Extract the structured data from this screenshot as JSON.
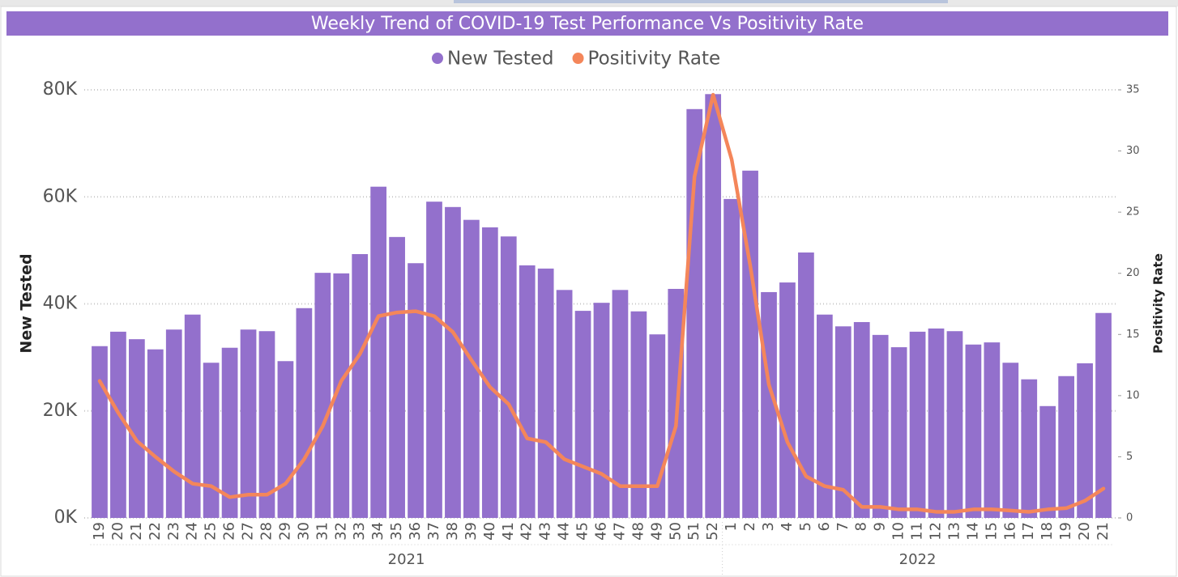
{
  "chart_data": {
    "type": "bar-line",
    "title": "Weekly Trend of COVID-19 Test Performance Vs Positivity Rate",
    "categories": [
      "19",
      "20",
      "21",
      "22",
      "23",
      "24",
      "25",
      "26",
      "27",
      "28",
      "29",
      "30",
      "31",
      "32",
      "33",
      "34",
      "35",
      "36",
      "37",
      "38",
      "39",
      "40",
      "41",
      "42",
      "43",
      "44",
      "45",
      "46",
      "47",
      "48",
      "49",
      "50",
      "51",
      "52",
      "1",
      "2",
      "3",
      "4",
      "5",
      "6",
      "7",
      "8",
      "9",
      "10",
      "11",
      "12",
      "13",
      "14",
      "15",
      "16",
      "17",
      "18",
      "19",
      "20",
      "21"
    ],
    "group_labels": [
      "2021",
      "2022"
    ],
    "series": [
      {
        "name": "New Tested",
        "color": "#9370cc",
        "kind": "bar",
        "axis": "y",
        "values": [
          32100,
          34800,
          33400,
          31500,
          35200,
          38000,
          29000,
          31800,
          35200,
          34900,
          29300,
          39200,
          45800,
          45700,
          49300,
          61900,
          52500,
          47600,
          59100,
          58100,
          55700,
          54300,
          52600,
          47200,
          46600,
          42600,
          38700,
          40200,
          42600,
          38600,
          34300,
          42800,
          76400,
          79200,
          59600,
          64900,
          42200,
          44000,
          49600,
          38000,
          35800,
          36600,
          34200,
          31900,
          34800,
          35400,
          34900,
          32400,
          32800,
          29000,
          25900,
          20900,
          26500,
          28900,
          38300
        ]
      },
      {
        "name": "Positivity Rate",
        "color": "#f4865a",
        "kind": "line",
        "axis": "y2",
        "values": [
          11.2,
          8.6,
          6.3,
          5,
          3.8,
          2.8,
          2.6,
          1.7,
          1.9,
          1.9,
          2.8,
          4.8,
          7.5,
          11.2,
          13.4,
          16.5,
          16.8,
          16.9,
          16.5,
          15.2,
          12.9,
          10.7,
          9.3,
          6.5,
          6.2,
          4.8,
          4.2,
          3.6,
          2.6,
          2.6,
          2.6,
          7.5,
          27.9,
          34.6,
          29.3,
          20.6,
          10.9,
          6.2,
          3.4,
          2.6,
          2.3,
          0.9,
          0.9,
          0.7,
          0.7,
          0.5,
          0.5,
          0.7,
          0.7,
          0.6,
          0.5,
          0.7,
          0.8,
          1.4,
          2.4
        ]
      }
    ],
    "ylabel": "New Tested",
    "y2label": "Positivity Rate",
    "ylim": [
      0,
      80000
    ],
    "yticks": [
      {
        "value": 0,
        "label": "0K"
      },
      {
        "value": 20000,
        "label": "20K"
      },
      {
        "value": 40000,
        "label": "40K"
      },
      {
        "value": 60000,
        "label": "60K"
      },
      {
        "value": 80000,
        "label": "80K"
      }
    ],
    "y2lim": [
      0,
      35
    ],
    "y2ticks": [
      0,
      5,
      10,
      15,
      20,
      25,
      30,
      35
    ],
    "grid": true,
    "legend": "top"
  }
}
